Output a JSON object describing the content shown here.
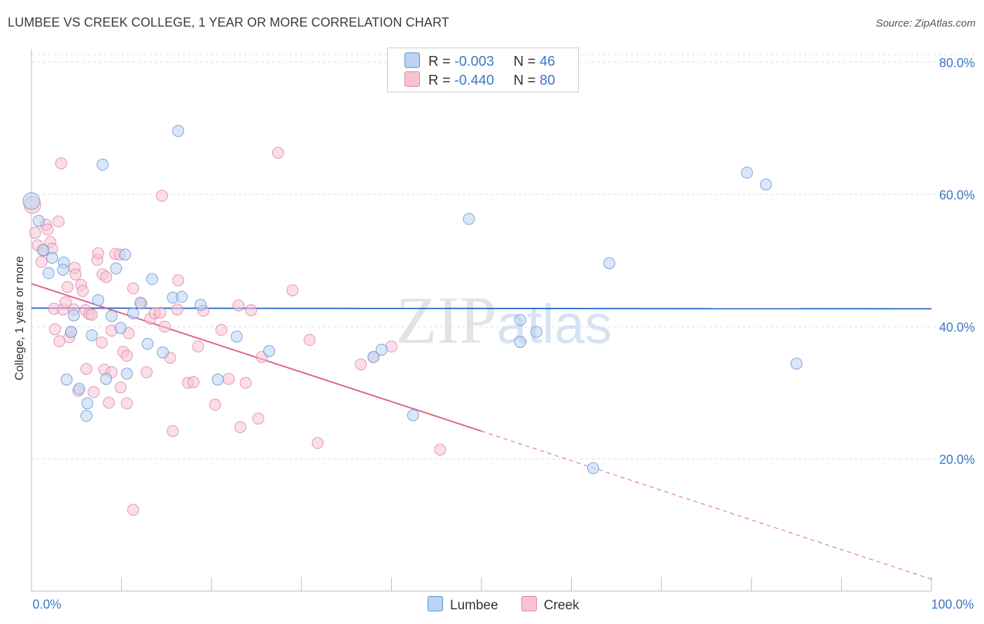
{
  "title": "LUMBEE VS CREEK COLLEGE, 1 YEAR OR MORE CORRELATION CHART",
  "source": "Source: ZipAtlas.com",
  "watermark": "ZIPatlas",
  "colors": {
    "lumbee_fill": "#b9d3f3",
    "lumbee_stroke": "#5b90d6",
    "lumbee_line": "#2f6fc9",
    "creek_fill": "#f7c3d3",
    "creek_stroke": "#e07fa0",
    "creek_line": "#e0608c",
    "axis_label": "#3b78c9"
  },
  "legend": {
    "lumbee": {
      "r_label": "R = ",
      "r_value": "-0.003",
      "n_label": "N = ",
      "n_value": "46"
    },
    "creek": {
      "r_label": "R = ",
      "r_value": "-0.440",
      "n_label": "N = ",
      "n_value": "80"
    }
  },
  "bottom_legend": {
    "lumbee": "Lumbee",
    "creek": "Creek"
  },
  "chart_data": {
    "type": "scatter",
    "title": "LUMBEE VS CREEK COLLEGE, 1 YEAR OR MORE CORRELATION CHART",
    "xlabel": "",
    "ylabel": "College, 1 year or more",
    "xlim": [
      0,
      100
    ],
    "ylim": [
      0,
      82
    ],
    "x_tick_labels": [
      "0.0%",
      "100.0%"
    ],
    "y_ticks": [
      20,
      40,
      60,
      80
    ],
    "y_tick_labels": [
      "20.0%",
      "40.0%",
      "60.0%",
      "80.0%"
    ],
    "grid": true,
    "legend_position": "top-center",
    "series": [
      {
        "name": "Lumbee",
        "r": -0.003,
        "n": 46,
        "trend": {
          "x": [
            0,
            100
          ],
          "y": [
            42.8,
            42.7
          ]
        },
        "points": [
          [
            0.0,
            59.0
          ],
          [
            0.8,
            56.0
          ],
          [
            1.3,
            51.6
          ],
          [
            1.9,
            48.1
          ],
          [
            2.3,
            50.4
          ],
          [
            3.6,
            49.7
          ],
          [
            3.5,
            48.6
          ],
          [
            3.9,
            32.0
          ],
          [
            4.4,
            39.2
          ],
          [
            4.7,
            41.7
          ],
          [
            5.3,
            30.6
          ],
          [
            6.2,
            28.4
          ],
          [
            6.1,
            26.5
          ],
          [
            6.7,
            38.7
          ],
          [
            7.4,
            44.0
          ],
          [
            7.9,
            64.5
          ],
          [
            8.3,
            32.1
          ],
          [
            8.9,
            41.6
          ],
          [
            9.4,
            48.8
          ],
          [
            9.9,
            39.8
          ],
          [
            10.4,
            50.9
          ],
          [
            10.6,
            32.9
          ],
          [
            11.3,
            42.0
          ],
          [
            12.1,
            43.6
          ],
          [
            12.9,
            37.4
          ],
          [
            13.4,
            47.2
          ],
          [
            14.6,
            36.1
          ],
          [
            15.7,
            44.4
          ],
          [
            16.3,
            69.6
          ],
          [
            16.7,
            44.5
          ],
          [
            18.8,
            43.3
          ],
          [
            20.7,
            32.0
          ],
          [
            22.8,
            38.5
          ],
          [
            26.4,
            36.3
          ],
          [
            38.0,
            35.4
          ],
          [
            38.9,
            36.5
          ],
          [
            42.4,
            26.6
          ],
          [
            48.6,
            56.3
          ],
          [
            54.3,
            41.0
          ],
          [
            54.3,
            37.7
          ],
          [
            56.1,
            39.2
          ],
          [
            64.2,
            49.6
          ],
          [
            62.4,
            18.6
          ],
          [
            79.5,
            63.3
          ],
          [
            81.6,
            61.5
          ],
          [
            85.0,
            34.4
          ]
        ]
      },
      {
        "name": "Creek",
        "r": -0.44,
        "n": 80,
        "trend": {
          "x": [
            0,
            50
          ],
          "y": [
            46.5,
            24.2
          ],
          "dashed_x": [
            50,
            100
          ],
          "dashed_y": [
            24.2,
            1.8
          ]
        },
        "points": [
          [
            0.1,
            58.4
          ],
          [
            0.4,
            54.2
          ],
          [
            0.7,
            52.3
          ],
          [
            1.1,
            49.8
          ],
          [
            1.3,
            51.5
          ],
          [
            1.6,
            55.4
          ],
          [
            1.8,
            54.7
          ],
          [
            2.1,
            52.8
          ],
          [
            2.3,
            51.8
          ],
          [
            2.5,
            42.7
          ],
          [
            2.6,
            39.6
          ],
          [
            3.0,
            55.9
          ],
          [
            3.1,
            37.8
          ],
          [
            3.3,
            64.7
          ],
          [
            3.5,
            42.6
          ],
          [
            3.8,
            43.7
          ],
          [
            4.0,
            46.0
          ],
          [
            4.2,
            38.4
          ],
          [
            4.4,
            39.2
          ],
          [
            4.7,
            42.6
          ],
          [
            4.8,
            48.9
          ],
          [
            4.9,
            47.9
          ],
          [
            5.2,
            30.3
          ],
          [
            5.5,
            46.3
          ],
          [
            5.7,
            45.4
          ],
          [
            6.0,
            42.5
          ],
          [
            6.1,
            33.6
          ],
          [
            6.4,
            41.9
          ],
          [
            6.7,
            41.8
          ],
          [
            6.9,
            30.1
          ],
          [
            7.3,
            50.1
          ],
          [
            7.4,
            51.1
          ],
          [
            7.8,
            37.6
          ],
          [
            7.9,
            47.9
          ],
          [
            8.3,
            47.5
          ],
          [
            8.1,
            33.5
          ],
          [
            8.6,
            28.5
          ],
          [
            8.9,
            39.4
          ],
          [
            8.9,
            33.1
          ],
          [
            9.3,
            51.0
          ],
          [
            9.8,
            50.9
          ],
          [
            9.9,
            30.8
          ],
          [
            10.2,
            36.2
          ],
          [
            10.6,
            35.6
          ],
          [
            10.6,
            28.4
          ],
          [
            10.8,
            39.0
          ],
          [
            11.3,
            45.8
          ],
          [
            11.3,
            12.3
          ],
          [
            12.2,
            43.5
          ],
          [
            12.8,
            33.1
          ],
          [
            13.2,
            41.2
          ],
          [
            13.7,
            42.0
          ],
          [
            14.3,
            42.1
          ],
          [
            14.8,
            40.0
          ],
          [
            14.5,
            59.8
          ],
          [
            15.4,
            35.3
          ],
          [
            15.7,
            24.2
          ],
          [
            16.2,
            42.6
          ],
          [
            16.3,
            47.0
          ],
          [
            17.4,
            31.5
          ],
          [
            18.0,
            31.6
          ],
          [
            18.5,
            37.0
          ],
          [
            19.1,
            42.4
          ],
          [
            20.4,
            28.2
          ],
          [
            21.1,
            39.5
          ],
          [
            21.9,
            32.1
          ],
          [
            23.0,
            43.2
          ],
          [
            23.2,
            24.8
          ],
          [
            23.8,
            31.5
          ],
          [
            24.4,
            42.5
          ],
          [
            25.2,
            26.1
          ],
          [
            25.6,
            35.4
          ],
          [
            27.4,
            66.3
          ],
          [
            29.0,
            45.5
          ],
          [
            30.9,
            38.0
          ],
          [
            31.8,
            22.4
          ],
          [
            36.6,
            34.3
          ],
          [
            38.0,
            35.4
          ],
          [
            40.0,
            37.0
          ],
          [
            45.4,
            21.4
          ]
        ]
      }
    ]
  }
}
